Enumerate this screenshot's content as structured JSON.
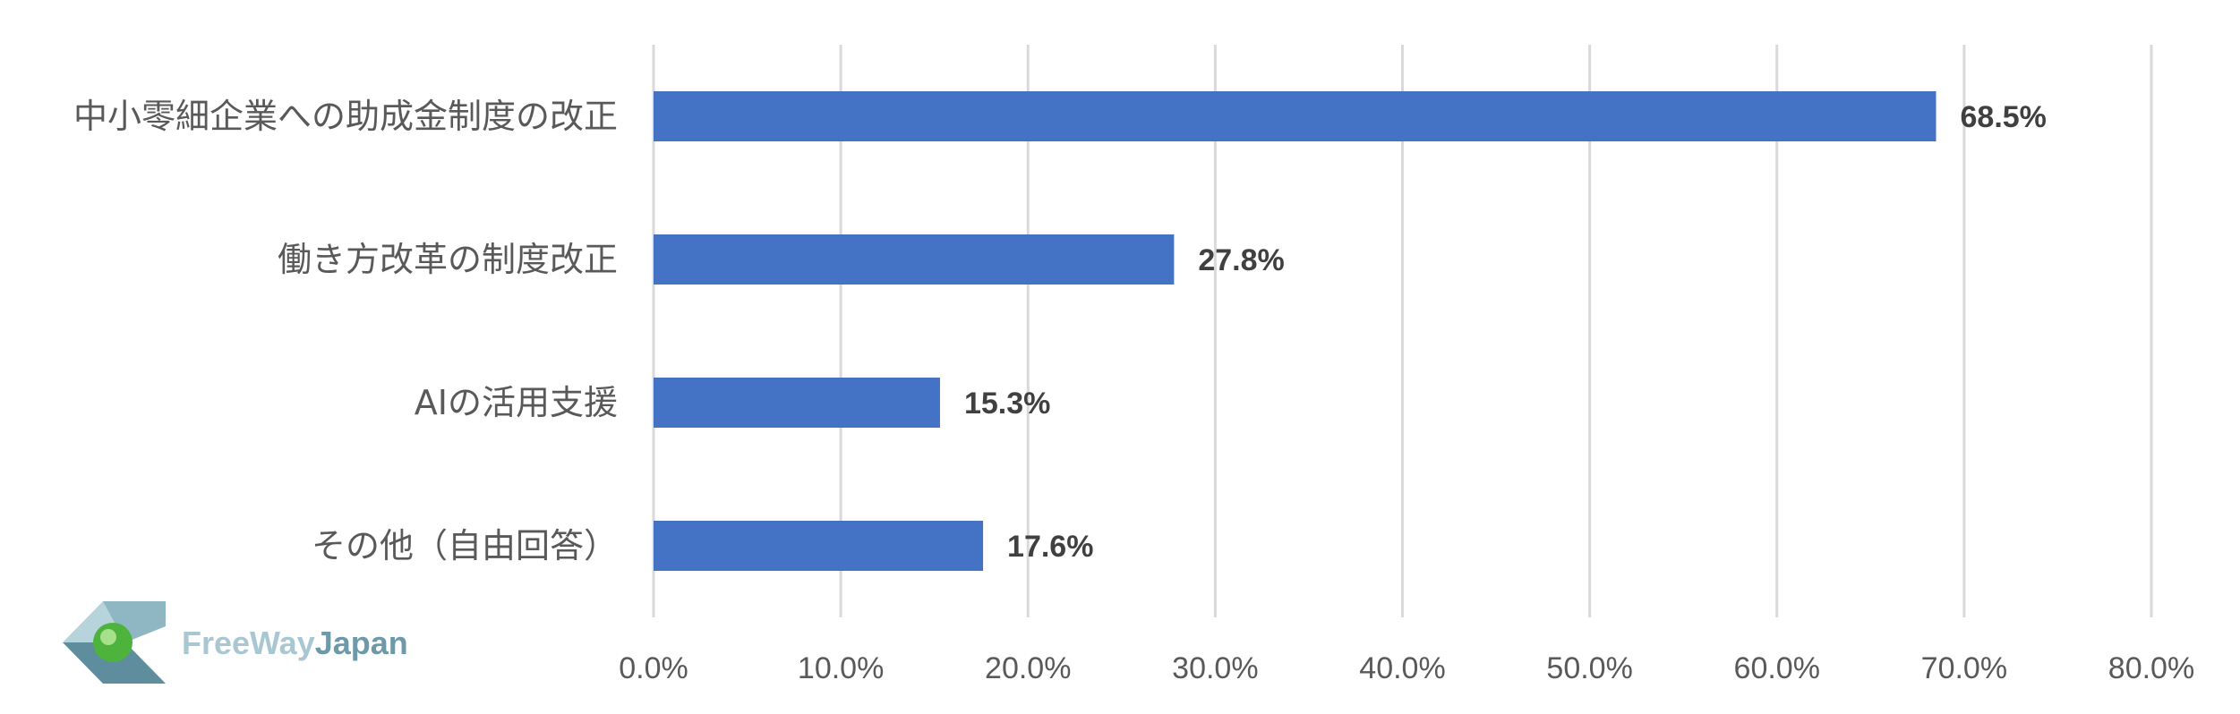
{
  "chart_data": {
    "type": "bar",
    "orientation": "horizontal",
    "categories": [
      "中小零細企業への助成金制度の改正",
      "働き方改革の制度改正",
      "AIの活用支援",
      "その他（自由回答）"
    ],
    "values": [
      68.5,
      27.8,
      15.3,
      17.6
    ],
    "value_labels": [
      "68.5%",
      "27.8%",
      "15.3%",
      "17.6%"
    ],
    "xlim": [
      0,
      80
    ],
    "ticks": [
      "0.0%",
      "10.0%",
      "20.0%",
      "30.0%",
      "40.0%",
      "50.0%",
      "60.0%",
      "70.0%",
      "80.0%"
    ],
    "grid": true,
    "title": "",
    "xlabel": "",
    "ylabel": "",
    "bar_color": "#4472C4"
  },
  "logo": {
    "text_light": "FreeWay",
    "text_bold": "Japan",
    "color_light": "#A9C7D2",
    "color_bold": "#6E99A9"
  }
}
